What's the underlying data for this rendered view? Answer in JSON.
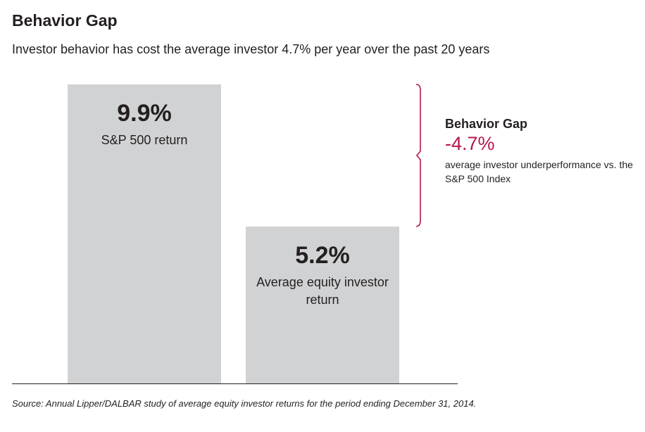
{
  "chart_data": {
    "type": "bar",
    "title": "Behavior Gap",
    "subtitle": "Investor behavior has cost the average investor 4.7% per year over the past 20 years",
    "categories": [
      "S&P 500 return",
      "Average equity investor return"
    ],
    "values": [
      9.9,
      5.2
    ],
    "value_labels": [
      "9.9%",
      "5.2%"
    ],
    "color": "#d1d2d4",
    "annotation": {
      "title": "Behavior Gap",
      "value": -4.7,
      "value_label": "-4.7%",
      "text": "average investor underperformance vs. the S&P 500 Index",
      "color": "#b5174b"
    },
    "source": "Source:  Annual Lipper/DALBAR study of average equity investor returns for the period ending December 31, 2014."
  }
}
